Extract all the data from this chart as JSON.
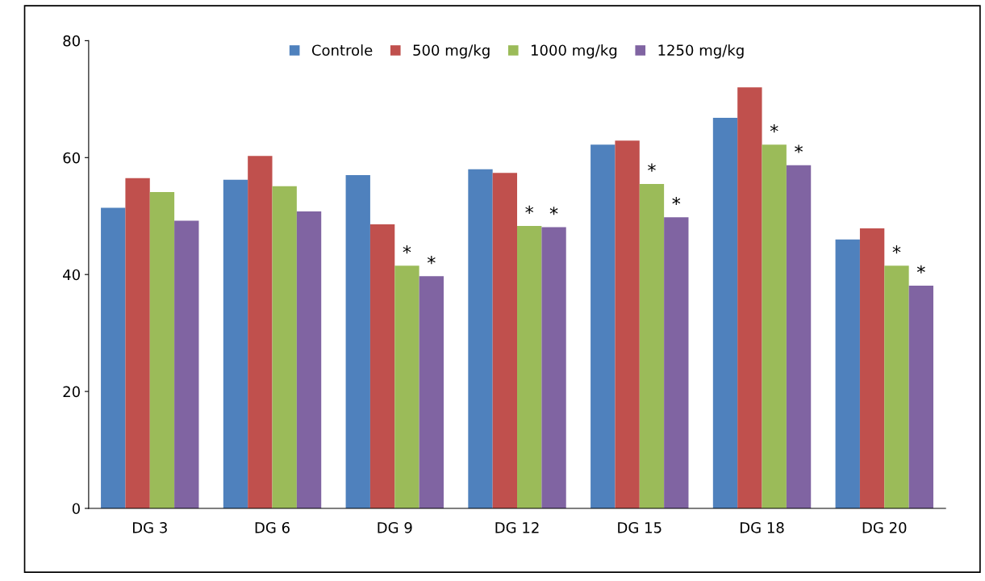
{
  "chart_data": {
    "type": "bar",
    "categories": [
      "DG 3",
      "DG 6",
      "DG 9",
      "DG 12",
      "DG 15",
      "DG 18",
      "DG 20"
    ],
    "series": [
      {
        "name": "Controle",
        "color": "#4f81bd",
        "values": [
          51.4,
          56.2,
          57.0,
          58.0,
          62.2,
          66.8,
          46.0
        ]
      },
      {
        "name": "500 mg/kg",
        "color": "#c0504d",
        "values": [
          56.5,
          60.3,
          48.6,
          57.4,
          62.9,
          72.0,
          47.9
        ]
      },
      {
        "name": "1000 mg/kg",
        "color": "#9bbb59",
        "values": [
          54.1,
          55.1,
          41.5,
          48.3,
          55.5,
          62.2,
          41.5
        ],
        "value_labels": [
          null,
          null,
          "*",
          "*",
          "*",
          "*",
          "*"
        ]
      },
      {
        "name": "1250 mg/kg",
        "color": "#8064a2",
        "values": [
          49.2,
          50.8,
          39.7,
          48.1,
          49.8,
          58.7,
          38.1
        ],
        "value_labels": [
          null,
          null,
          "*",
          "*",
          "*",
          "*",
          "*"
        ]
      }
    ],
    "ylim": [
      0,
      80
    ],
    "yticks": [
      0,
      20,
      40,
      60,
      80
    ],
    "grid": false,
    "legend": "top"
  }
}
